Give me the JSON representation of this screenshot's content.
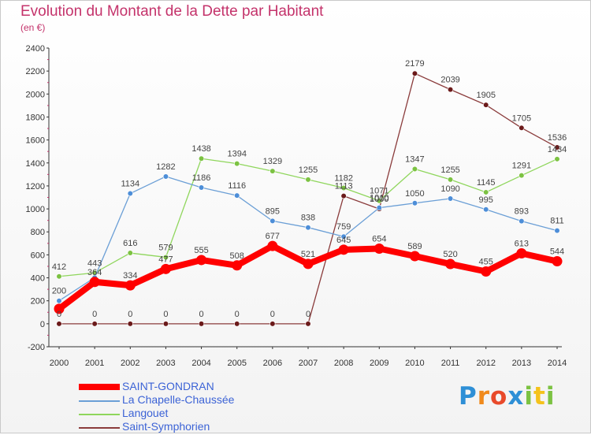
{
  "title": "Evolution du Montant de la Dette par Habitant",
  "subtitle": "(en €)",
  "brand": {
    "letters": [
      {
        "ch": "P",
        "color": "#2e8fd6"
      },
      {
        "ch": "r",
        "color": "#f08a1c"
      },
      {
        "ch": "o",
        "color": "#e84a2b"
      },
      {
        "ch": "x",
        "color": "#2e8fd6"
      },
      {
        "ch": "i",
        "color": "#7cc242"
      },
      {
        "ch": "t",
        "color": "#f5c21b"
      },
      {
        "ch": "i",
        "color": "#7cc242"
      }
    ]
  },
  "chart_data": {
    "type": "line",
    "title": "Evolution du Montant de la Dette par Habitant",
    "subtitle": "(en €)",
    "x": [
      "2000",
      "2001",
      "2002",
      "2003",
      "2004",
      "2005",
      "2006",
      "2007",
      "2008",
      "2009",
      "2010",
      "2011",
      "2012",
      "2013",
      "2014"
    ],
    "ylim": [
      -200,
      2400
    ],
    "yticks": [
      -200,
      0,
      200,
      400,
      600,
      800,
      1000,
      1200,
      1400,
      1600,
      1800,
      2000,
      2200,
      2400
    ],
    "grid": false,
    "legend_position": "bottom-left",
    "series": [
      {
        "name": "SAINT-GONDRAN",
        "color": "#ff0000",
        "width": 8,
        "marker_color": "#ff0000",
        "values": [
          130,
          364,
          334,
          477,
          555,
          508,
          677,
          521,
          645,
          654,
          589,
          520,
          455,
          613,
          544
        ],
        "labels": [
          "",
          "364",
          "334",
          "477",
          "555",
          "508",
          "677",
          "521",
          "645",
          "654",
          "589",
          "520",
          "455",
          "613",
          "544"
        ]
      },
      {
        "name": "La Chapelle-Chaussée",
        "color": "#6b9fd6",
        "width": 1.3,
        "marker_color": "#4d8ed8",
        "values": [
          200,
          402,
          1134,
          1282,
          1186,
          1116,
          895,
          838,
          759,
          1010,
          1050,
          1090,
          995,
          893,
          811
        ],
        "labels": [
          "200",
          "",
          "1134",
          "1282",
          "1186",
          "1116",
          "895",
          "838",
          "759",
          "1010",
          "1050",
          "1090",
          "995",
          "893",
          "811"
        ]
      },
      {
        "name": "Langouet",
        "color": "#8fd65c",
        "width": 1.3,
        "marker_color": "#7cc242",
        "values": [
          412,
          443,
          616,
          579,
          1438,
          1394,
          1329,
          1255,
          1182,
          1071,
          1347,
          1255,
          1145,
          1291,
          1434
        ],
        "labels": [
          "412",
          "443",
          "616",
          "579",
          "1438",
          "1394",
          "1329",
          "1255",
          "1182",
          "1071",
          "1347",
          "1255",
          "1145",
          "1291",
          "1434"
        ]
      },
      {
        "name": "Saint-Symphorien",
        "color": "#8a3b3b",
        "width": 1.3,
        "marker_color": "#6b1a1a",
        "values": [
          0,
          0,
          0,
          0,
          0,
          0,
          0,
          0,
          1113,
          1000,
          2179,
          2039,
          1905,
          1705,
          1536
        ],
        "labels": [
          "0",
          "0",
          "0",
          "0",
          "0",
          "0",
          "0",
          "0",
          "1113",
          "1000",
          "2179",
          "2039",
          "1905",
          "1705",
          "1536"
        ]
      }
    ]
  }
}
